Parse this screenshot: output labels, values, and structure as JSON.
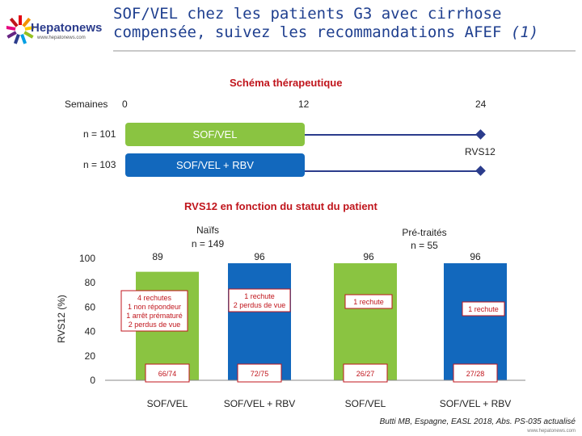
{
  "header": {
    "logo_name": "Hepatonews",
    "logo_url": "www.hepatonews.com",
    "title_line1": "SOF/VEL chez les patients G3 avec cirrhose",
    "title_line2": "compensée, suivez les recommandations AFEF",
    "title_ref": "(1)"
  },
  "scheme": {
    "title": "Schéma thérapeutique",
    "weeks_label": "Semaines",
    "week_ticks": [
      "0",
      "12",
      "24"
    ],
    "arms": [
      {
        "n_label": "n = 101",
        "treatment": "SOF/VEL"
      },
      {
        "n_label": "n = 103",
        "treatment": "SOF/VEL + RBV"
      }
    ],
    "endpoint_label": "RVS12"
  },
  "chart_data": {
    "type": "bar",
    "title": "RVS12 en fonction du statut du patient",
    "ylabel": "RVS12 (%)",
    "ylim": [
      0,
      100
    ],
    "yticks": [
      0,
      20,
      40,
      60,
      80,
      100
    ],
    "groups": [
      {
        "label": "Naïfs",
        "n_label": "n = 149"
      },
      {
        "label": "Pré-traités",
        "n_label": "n = 55"
      }
    ],
    "categories": [
      "SOF/VEL",
      "SOF/VEL + RBV",
      "SOF/VEL",
      "SOF/VEL + RBV"
    ],
    "values": [
      89,
      96,
      96,
      96
    ],
    "value_labels": [
      "89",
      "96",
      "96",
      "96"
    ],
    "fractions": [
      "66/74",
      "72/75",
      "26/27",
      "27/28"
    ],
    "notes": [
      [
        "4 rechutes",
        "1 non répondeur",
        "1 arrêt prématuré",
        "2 perdus de vue"
      ],
      [
        "1 rechute",
        "2 perdus de vue"
      ],
      [
        "1 rechute"
      ],
      [
        "1 rechute"
      ]
    ],
    "colors": [
      "#8ac441",
      "#1268bd",
      "#8ac441",
      "#1268bd"
    ]
  },
  "colors": {
    "green": "#8ac441",
    "blue": "#1268bd",
    "navy": "#2b3c8c",
    "red": "#c0151c"
  },
  "footer": {
    "citation": "Butti MB, Espagne, EASL 2018, Abs. PS-035 actualisé",
    "url": "www.hepatonews.com"
  }
}
